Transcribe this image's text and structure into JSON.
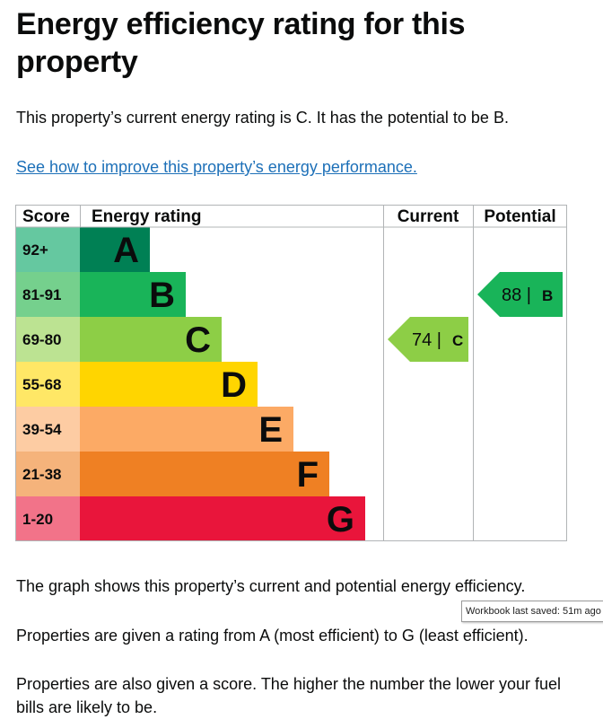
{
  "page": {
    "title": "Energy efficiency rating for this property",
    "intro": "This property’s current energy rating is C. It has the potential to be B.",
    "improve_link": "See how to improve this property’s energy performance.",
    "graph_note": "The graph shows this property’s current and potential energy efficiency.",
    "ratings_note": "Properties are given a rating from A (most efficient) to G (least efficient).",
    "score_note": "Properties are also given a score. The higher the number the lower your fuel bills are likely to be."
  },
  "tooltip": {
    "text": "Workbook last saved: 51m ago"
  },
  "chart_data": {
    "type": "table",
    "headers": {
      "score": "Score",
      "rating": "Energy rating",
      "current": "Current",
      "potential": "Potential"
    },
    "bands": [
      {
        "letter": "A",
        "range": "92+",
        "color": "#008054",
        "score_bg": "#65c8a0"
      },
      {
        "letter": "B",
        "range": "81-91",
        "color": "#19b459",
        "score_bg": "#75d08d"
      },
      {
        "letter": "C",
        "range": "69-80",
        "color": "#8dce46",
        "score_bg": "#bce392"
      },
      {
        "letter": "D",
        "range": "55-68",
        "color": "#ffd500",
        "score_bg": "#ffe766"
      },
      {
        "letter": "E",
        "range": "39-54",
        "color": "#fcaa65",
        "score_bg": "#fdcca3"
      },
      {
        "letter": "F",
        "range": "21-38",
        "color": "#ef8023",
        "score_bg": "#f5b37b"
      },
      {
        "letter": "G",
        "range": "1-20",
        "color": "#e9153b",
        "score_bg": "#f27389"
      }
    ],
    "current": {
      "score": 74,
      "letter": "C",
      "label": "74 |",
      "color": "#8dce46"
    },
    "potential": {
      "score": 88,
      "letter": "B",
      "label": "88 |",
      "color": "#19b459"
    }
  }
}
